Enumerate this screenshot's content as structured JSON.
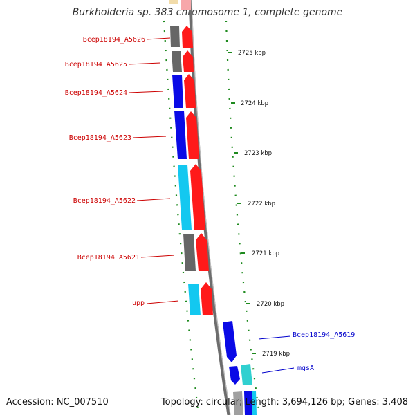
{
  "title": "Burkholderia sp. 383 chromosome 1, complete genome",
  "accession": "Accession: NC_007510",
  "summary": "Topology: circular; Length: 3,694,126 bp; Genes: 3,408",
  "colors": {
    "reverse_cds_red": "#ff1a1a",
    "blue_cds": "#0a0ae6",
    "cyan_cds": "#13c8f0",
    "gray_cds": "#666666",
    "teal_cds": "#30d0d0",
    "tick_green": "#1e8a1e",
    "label_red": "#cc0000",
    "label_blue": "#0000cc"
  },
  "scale_ticks": [
    {
      "label": "2725 kbp"
    },
    {
      "label": "2724 kbp"
    },
    {
      "label": "2723 kbp"
    },
    {
      "label": "2722 kbp"
    },
    {
      "label": "2721 kbp"
    },
    {
      "label": "2720 kbp"
    },
    {
      "label": "2719 kbp"
    }
  ],
  "gene_labels": [
    {
      "text": "Bcep18194_A5626",
      "color": "red"
    },
    {
      "text": "Bcep18194_A5625",
      "color": "red"
    },
    {
      "text": "Bcep18194_A5624",
      "color": "red"
    },
    {
      "text": "Bcep18194_A5623",
      "color": "red"
    },
    {
      "text": "Bcep18194_A5622",
      "color": "red"
    },
    {
      "text": "Bcep18194_A5621",
      "color": "red"
    },
    {
      "text": "upp",
      "color": "red"
    },
    {
      "text": "Bcep18194_A5619",
      "color": "blue"
    },
    {
      "text": "mgsA",
      "color": "blue"
    }
  ]
}
